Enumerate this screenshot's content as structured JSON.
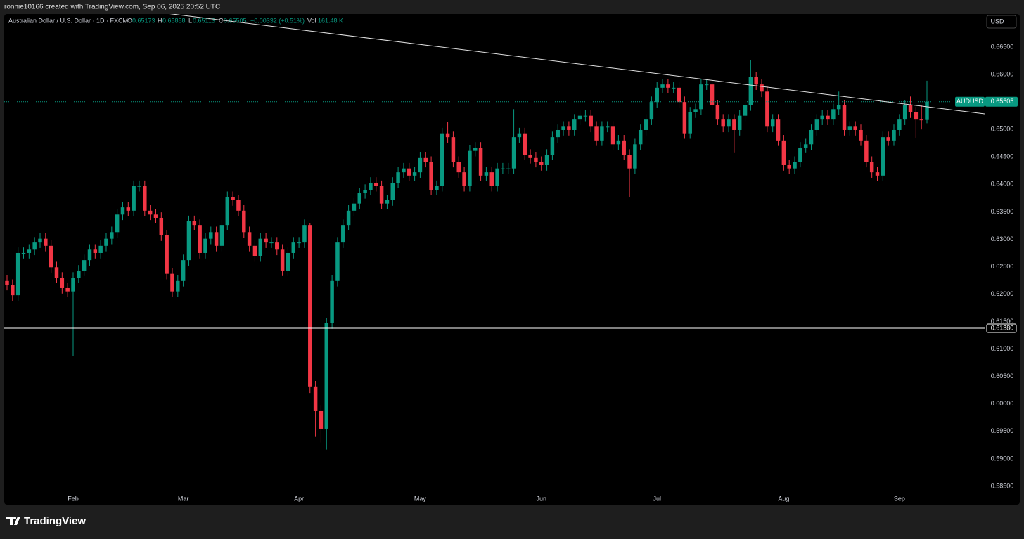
{
  "page": {
    "credit": "ronnie10166 created with TradingView.com, Sep 06, 2025 20:52 UTC",
    "brand": "TradingView",
    "currency_button": "USD"
  },
  "chart_data": {
    "type": "candlestick",
    "title": "Australian Dollar / U.S. Dollar · 1D · FXCM",
    "symbol": "AUDUSD",
    "legend": {
      "open_label": "O",
      "high_label": "H",
      "low_label": "L",
      "close_label": "C",
      "change": "+0.00332 (+0.51%)",
      "volume_label": "Vol",
      "volume": "161.48 K"
    },
    "up_color": "#089981",
    "down_color": "#f23645",
    "categories": [
      null,
      null,
      null,
      null,
      null,
      null,
      null,
      null,
      null,
      null,
      null,
      null,
      "Feb",
      null,
      null,
      null,
      null,
      null,
      null,
      null,
      null,
      null,
      null,
      null,
      null,
      null,
      null,
      null,
      null,
      null,
      null,
      null,
      "Mar",
      null,
      null,
      null,
      null,
      null,
      null,
      null,
      null,
      null,
      null,
      null,
      null,
      null,
      null,
      null,
      null,
      null,
      null,
      null,
      null,
      "Apr",
      null,
      null,
      null,
      null,
      null,
      null,
      null,
      null,
      null,
      null,
      null,
      null,
      null,
      null,
      null,
      null,
      null,
      null,
      null,
      null,
      null,
      "May",
      null,
      null,
      null,
      null,
      null,
      null,
      null,
      null,
      null,
      null,
      null,
      null,
      null,
      null,
      null,
      null,
      null,
      null,
      null,
      null,
      null,
      "Jun",
      null,
      null,
      null,
      null,
      null,
      null,
      null,
      null,
      null,
      null,
      null,
      null,
      null,
      null,
      null,
      null,
      null,
      null,
      null,
      null,
      "Jul",
      null,
      null,
      null,
      null,
      null,
      null,
      null,
      null,
      null,
      null,
      null,
      null,
      null,
      null,
      null,
      null,
      null,
      null,
      null,
      null,
      null,
      null,
      "Aug",
      null,
      null,
      null,
      null,
      null,
      null,
      null,
      null,
      null,
      null,
      null,
      null,
      null,
      null,
      null,
      null,
      null,
      null,
      null,
      null,
      "Sep",
      null,
      null,
      null,
      null,
      null
    ],
    "open": [
      0.6224,
      0.6217,
      0.6198,
      0.6275,
      0.6275,
      0.6281,
      0.6294,
      0.6301,
      0.6288,
      0.6249,
      0.623,
      0.6211,
      0.6205,
      0.623,
      0.6243,
      0.6262,
      0.6281,
      0.6275,
      0.6288,
      0.6301,
      0.6313,
      0.6345,
      0.6358,
      0.6352,
      0.6397,
      0.6397,
      0.6352,
      0.6345,
      0.6339,
      0.6307,
      0.6237,
      0.6205,
      0.6224,
      0.6262,
      0.6333,
      0.6326,
      0.6275,
      0.6301,
      0.6313,
      0.6288,
      0.6326,
      0.6377,
      0.6371,
      0.6352,
      0.6313,
      0.6288,
      0.6269,
      0.6301,
      0.6294,
      0.6294,
      0.6281,
      0.6243,
      0.6275,
      0.6294,
      0.6294,
      0.6326,
      0.6032,
      0.5987,
      0.5955,
      0.6147,
      0.6224,
      0.6294,
      0.6326,
      0.6352,
      0.6365,
      0.6384,
      0.639,
      0.6403,
      0.6397,
      0.6365,
      0.6371,
      0.6403,
      0.6422,
      0.6429,
      0.6416,
      0.6422,
      0.6448,
      0.6441,
      0.639,
      0.6397,
      0.6493,
      0.6486,
      0.6441,
      0.6422,
      0.6397,
      0.6461,
      0.6467,
      0.6416,
      0.6422,
      0.6397,
      0.6429,
      0.6429,
      0.6429,
      0.6486,
      0.6493,
      0.6454,
      0.6448,
      0.6441,
      0.6435,
      0.6454,
      0.6486,
      0.6499,
      0.6505,
      0.6499,
      0.6518,
      0.6525,
      0.6525,
      0.6505,
      0.648,
      0.6505,
      0.6505,
      0.6473,
      0.648,
      0.6454,
      0.6429,
      0.6473,
      0.6499,
      0.6518,
      0.655,
      0.6576,
      0.6582,
      0.6576,
      0.6576,
      0.655,
      0.6493,
      0.6531,
      0.6537,
      0.6582,
      0.6582,
      0.6544,
      0.6518,
      0.6505,
      0.6518,
      0.6499,
      0.6525,
      0.6544,
      0.6595,
      0.6582,
      0.6569,
      0.6505,
      0.6518,
      0.648,
      0.6435,
      0.6429,
      0.6441,
      0.6467,
      0.6473,
      0.6499,
      0.6518,
      0.6525,
      0.6518,
      0.6537,
      0.6544,
      0.6499,
      0.6505,
      0.6499,
      0.648,
      0.6441,
      0.6422,
      0.6416,
      0.6486,
      0.648,
      0.6499,
      0.6518,
      0.6544,
      0.6531,
      0.6518,
      0.65173
    ],
    "high": [
      0.6234,
      0.6227,
      0.6285,
      0.6285,
      0.6291,
      0.6304,
      0.6311,
      0.6311,
      0.6298,
      0.6259,
      0.624,
      0.6221,
      0.624,
      0.6253,
      0.6272,
      0.6291,
      0.6291,
      0.6298,
      0.6311,
      0.6323,
      0.6355,
      0.6368,
      0.6368,
      0.6407,
      0.6407,
      0.6407,
      0.6362,
      0.6355,
      0.6349,
      0.6317,
      0.6247,
      0.6234,
      0.6272,
      0.6343,
      0.6343,
      0.6336,
      0.6311,
      0.6323,
      0.6323,
      0.6336,
      0.6387,
      0.6387,
      0.6381,
      0.6362,
      0.6323,
      0.6298,
      0.6311,
      0.6311,
      0.6304,
      0.6304,
      0.6291,
      0.6285,
      0.6304,
      0.6304,
      0.6336,
      0.633,
      0.6042,
      0.5997,
      0.6157,
      0.6234,
      0.6304,
      0.6336,
      0.6362,
      0.6375,
      0.6394,
      0.64,
      0.6413,
      0.6413,
      0.6407,
      0.6381,
      0.6413,
      0.6432,
      0.6439,
      0.6439,
      0.6432,
      0.6458,
      0.6458,
      0.6451,
      0.6407,
      0.6503,
      0.6514,
      0.6496,
      0.6451,
      0.6432,
      0.6471,
      0.6477,
      0.6477,
      0.6432,
      0.6432,
      0.6439,
      0.6439,
      0.6439,
      0.6537,
      0.6503,
      0.6503,
      0.6464,
      0.6458,
      0.6451,
      0.6464,
      0.6496,
      0.6509,
      0.6515,
      0.6515,
      0.6528,
      0.6535,
      0.6535,
      0.6535,
      0.6515,
      0.6515,
      0.6515,
      0.6515,
      0.649,
      0.649,
      0.6464,
      0.6483,
      0.6509,
      0.6528,
      0.656,
      0.6586,
      0.6592,
      0.6592,
      0.6586,
      0.6586,
      0.656,
      0.6541,
      0.6547,
      0.6592,
      0.6592,
      0.6592,
      0.6554,
      0.6528,
      0.6528,
      0.6528,
      0.6535,
      0.6554,
      0.6627,
      0.6605,
      0.6592,
      0.6579,
      0.6528,
      0.6528,
      0.649,
      0.6445,
      0.6451,
      0.6477,
      0.6483,
      0.6509,
      0.6528,
      0.6535,
      0.6535,
      0.6547,
      0.6569,
      0.6554,
      0.6515,
      0.6515,
      0.6509,
      0.649,
      0.6451,
      0.6432,
      0.6496,
      0.6496,
      0.6509,
      0.6528,
      0.6554,
      0.656,
      0.6541,
      0.6544,
      0.65888
    ],
    "low": [
      0.6207,
      0.6188,
      0.6188,
      0.6265,
      0.6265,
      0.6271,
      0.6284,
      0.6278,
      0.6239,
      0.622,
      0.6201,
      0.6195,
      0.6087,
      0.622,
      0.6233,
      0.6252,
      0.6265,
      0.6265,
      0.6278,
      0.6291,
      0.6303,
      0.6335,
      0.6342,
      0.6342,
      0.6387,
      0.6342,
      0.6335,
      0.6329,
      0.6297,
      0.6227,
      0.6195,
      0.6195,
      0.6214,
      0.6252,
      0.6316,
      0.6265,
      0.6265,
      0.6291,
      0.6278,
      0.6278,
      0.6316,
      0.6361,
      0.6342,
      0.6303,
      0.6278,
      0.6259,
      0.6259,
      0.6284,
      0.6284,
      0.6271,
      0.6233,
      0.6233,
      0.6265,
      0.6284,
      0.6284,
      0.602,
      0.594,
      0.593,
      0.5917,
      0.6137,
      0.6214,
      0.6284,
      0.6316,
      0.6342,
      0.6355,
      0.6374,
      0.638,
      0.6387,
      0.6355,
      0.6355,
      0.6361,
      0.6393,
      0.6412,
      0.6406,
      0.6406,
      0.6412,
      0.6431,
      0.638,
      0.638,
      0.6387,
      0.6476,
      0.6431,
      0.6412,
      0.6387,
      0.6387,
      0.6451,
      0.6406,
      0.6406,
      0.6387,
      0.6387,
      0.6419,
      0.6419,
      0.6419,
      0.6476,
      0.6444,
      0.6438,
      0.6431,
      0.6425,
      0.6425,
      0.6444,
      0.6476,
      0.6489,
      0.6489,
      0.6489,
      0.6508,
      0.6515,
      0.6495,
      0.647,
      0.647,
      0.6495,
      0.6463,
      0.6463,
      0.6444,
      0.6377,
      0.6419,
      0.6463,
      0.6489,
      0.6508,
      0.654,
      0.6566,
      0.6566,
      0.6566,
      0.654,
      0.6483,
      0.6483,
      0.6521,
      0.6527,
      0.6572,
      0.6534,
      0.6508,
      0.6495,
      0.6495,
      0.6457,
      0.6489,
      0.6515,
      0.6534,
      0.6572,
      0.6559,
      0.6495,
      0.6495,
      0.647,
      0.6425,
      0.6419,
      0.6419,
      0.6431,
      0.6457,
      0.6463,
      0.6489,
      0.6508,
      0.6508,
      0.6508,
      0.6527,
      0.6489,
      0.6489,
      0.6489,
      0.647,
      0.6431,
      0.6412,
      0.6406,
      0.6406,
      0.647,
      0.647,
      0.6489,
      0.6508,
      0.6521,
      0.6485,
      0.65,
      0.65113
    ],
    "close": [
      0.6217,
      0.6198,
      0.6275,
      0.6275,
      0.6281,
      0.6294,
      0.6301,
      0.6288,
      0.6249,
      0.623,
      0.6211,
      0.6205,
      0.623,
      0.6243,
      0.6262,
      0.6281,
      0.6275,
      0.6288,
      0.6301,
      0.6313,
      0.6345,
      0.6358,
      0.6352,
      0.6397,
      0.6397,
      0.6352,
      0.6345,
      0.6339,
      0.6307,
      0.6237,
      0.6205,
      0.6224,
      0.6262,
      0.6333,
      0.6326,
      0.6275,
      0.6301,
      0.6313,
      0.6288,
      0.6326,
      0.6377,
      0.6371,
      0.6352,
      0.6313,
      0.6288,
      0.6269,
      0.6301,
      0.6294,
      0.6294,
      0.6281,
      0.6243,
      0.6275,
      0.6294,
      0.6294,
      0.6326,
      0.6032,
      0.5987,
      0.5955,
      0.6147,
      0.6224,
      0.6294,
      0.6326,
      0.6352,
      0.6365,
      0.6384,
      0.639,
      0.6403,
      0.6397,
      0.6365,
      0.6371,
      0.6403,
      0.6422,
      0.6429,
      0.6416,
      0.6422,
      0.6448,
      0.6441,
      0.639,
      0.6397,
      0.6493,
      0.6486,
      0.6441,
      0.6422,
      0.6397,
      0.6461,
      0.6467,
      0.6416,
      0.6422,
      0.6397,
      0.6429,
      0.6429,
      0.6429,
      0.6486,
      0.6493,
      0.6454,
      0.6448,
      0.6441,
      0.6435,
      0.6454,
      0.6486,
      0.6499,
      0.6505,
      0.6499,
      0.6518,
      0.6525,
      0.6525,
      0.6505,
      0.648,
      0.6505,
      0.6505,
      0.6473,
      0.648,
      0.6454,
      0.6429,
      0.6473,
      0.6499,
      0.6518,
      0.655,
      0.6576,
      0.6582,
      0.6576,
      0.6576,
      0.655,
      0.6493,
      0.6531,
      0.6537,
      0.6582,
      0.6582,
      0.6544,
      0.6518,
      0.6505,
      0.6518,
      0.6499,
      0.6525,
      0.6544,
      0.6595,
      0.6582,
      0.6569,
      0.6505,
      0.6518,
      0.648,
      0.6435,
      0.6429,
      0.6441,
      0.6467,
      0.6473,
      0.6499,
      0.6518,
      0.6525,
      0.6518,
      0.6537,
      0.6544,
      0.6499,
      0.6505,
      0.6499,
      0.648,
      0.6441,
      0.6422,
      0.6416,
      0.6486,
      0.648,
      0.6499,
      0.6518,
      0.6544,
      0.6531,
      0.6518,
      0.6517,
      0.65505
    ],
    "ylim": [
      0.58167,
      0.67102
    ],
    "yticks": [
      {
        "value": 0.585,
        "label": "0.58500"
      },
      {
        "value": 0.59,
        "label": "0.59000"
      },
      {
        "value": 0.595,
        "label": "0.59500"
      },
      {
        "value": 0.6,
        "label": "0.60000"
      },
      {
        "value": 0.605,
        "label": "0.60500"
      },
      {
        "value": 0.61,
        "label": "0.61000"
      },
      {
        "value": 0.615,
        "label": "0.61500"
      },
      {
        "value": 0.62,
        "label": "0.62000"
      },
      {
        "value": 0.625,
        "label": "0.62500"
      },
      {
        "value": 0.63,
        "label": "0.63000"
      },
      {
        "value": 0.635,
        "label": "0.63500"
      },
      {
        "value": 0.64,
        "label": "0.64000"
      },
      {
        "value": 0.645,
        "label": "0.64500"
      },
      {
        "value": 0.65,
        "label": "0.65000"
      },
      {
        "value": 0.655,
        "label": "0.65500"
      },
      {
        "value": 0.66,
        "label": "0.66000"
      },
      {
        "value": 0.665,
        "label": "0.66500"
      }
    ],
    "grid": false,
    "hline": {
      "value": 0.6138,
      "label": "0.61380",
      "color": "#ffffff"
    },
    "trendline": {
      "x": [
        28,
        177.5
      ],
      "y": [
        0.67127,
        0.65284
      ],
      "color": "#e0e0e0"
    }
  }
}
